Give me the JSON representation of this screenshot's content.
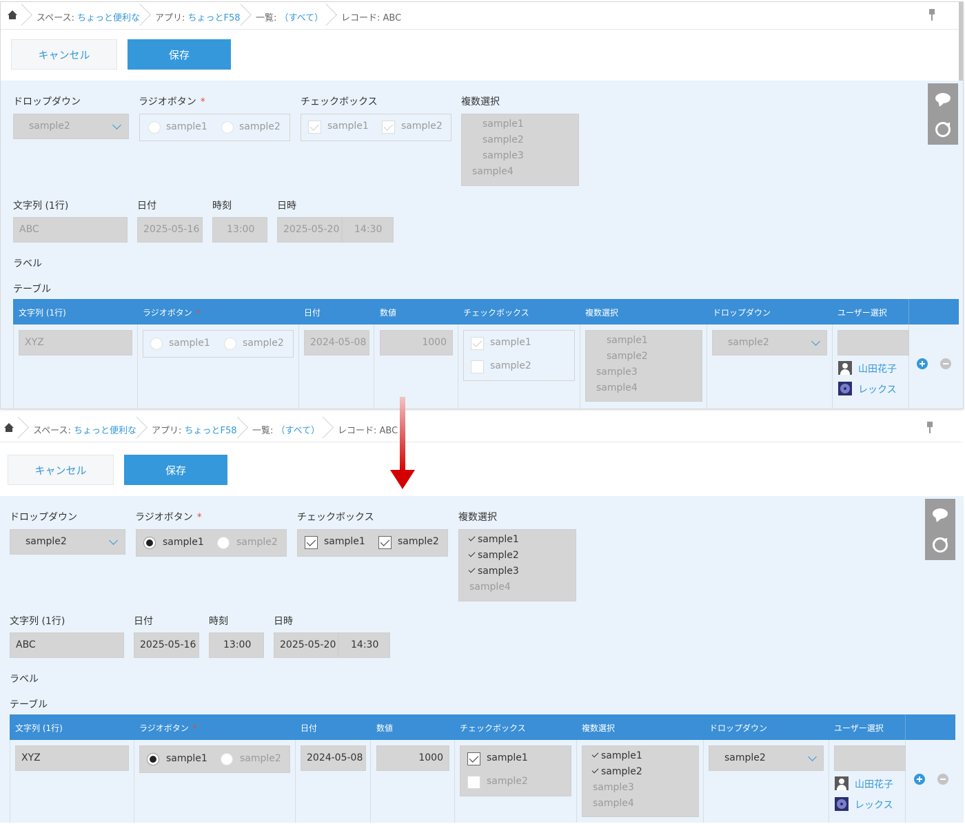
{
  "breadcrumb": {
    "space_prefix": "スペース: ",
    "space_link": "ちょっと便利な",
    "app_prefix": "アプリ: ",
    "app_link": "ちょっとF58",
    "view_prefix": "一覧: ",
    "view_link": "（すべて）",
    "record": "レコード: ABC"
  },
  "toolbar": {
    "cancel_label": "キャンセル",
    "save_label": "保存"
  },
  "form": {
    "dropdown_label": "ドロップダウン",
    "radio_label": "ラジオボタン",
    "required_mark": "*",
    "checkbox_label": "チェックボックス",
    "multi_label": "複数選択",
    "text_label": "文字列 (1行)",
    "date_label": "日付",
    "time_label": "時刻",
    "datetime_label": "日時",
    "label_label": "ラベル",
    "table_label": "テーブル",
    "dropdown_value": "sample2",
    "radio_options": [
      "sample1",
      "sample2"
    ],
    "checkbox_options": [
      "sample1",
      "sample2"
    ],
    "multi_options": [
      "sample1",
      "sample2",
      "sample3",
      "sample4"
    ],
    "text_value": "ABC",
    "date_value": "2025-05-16",
    "time_value": "13:00",
    "datetime_date": "2025-05-20",
    "datetime_time": "14:30"
  },
  "table": {
    "headers": [
      "文字列 (1行)",
      "ラジオボタン",
      "日付",
      "数値",
      "チェックボックス",
      "複数選択",
      "ドロップダウン",
      "ユーザー選択"
    ],
    "text_value": "XYZ",
    "radio_options": [
      "sample1",
      "sample2"
    ],
    "date_value": "2024-05-08",
    "number_value": "1000",
    "checkbox_options": [
      "sample1",
      "sample2"
    ],
    "multi_options": [
      "sample1",
      "sample2",
      "sample3",
      "sample4"
    ],
    "dropdown_value": "sample2",
    "users": [
      "山田花子",
      "レックス"
    ]
  },
  "states": {
    "before": {
      "editable": false,
      "radio_selected": null,
      "checkbox_checked": [
        true,
        true
      ],
      "multi_selected": [],
      "table_radio_selected": null,
      "table_checkbox_checked": [
        true,
        false
      ],
      "table_multi_selected": []
    },
    "after": {
      "editable": true,
      "radio_selected": "sample1",
      "checkbox_checked": [
        true,
        true
      ],
      "multi_selected": [
        "sample1",
        "sample2",
        "sample3"
      ],
      "table_radio_selected": "sample1",
      "table_checkbox_checked": [
        true,
        false
      ],
      "table_multi_selected": [
        "sample1",
        "sample2"
      ]
    }
  },
  "colors": {
    "accent": "#3498db",
    "table_header": "#3a8fd6",
    "form_bg": "#eaf3fb",
    "arrow": "#d40000"
  }
}
